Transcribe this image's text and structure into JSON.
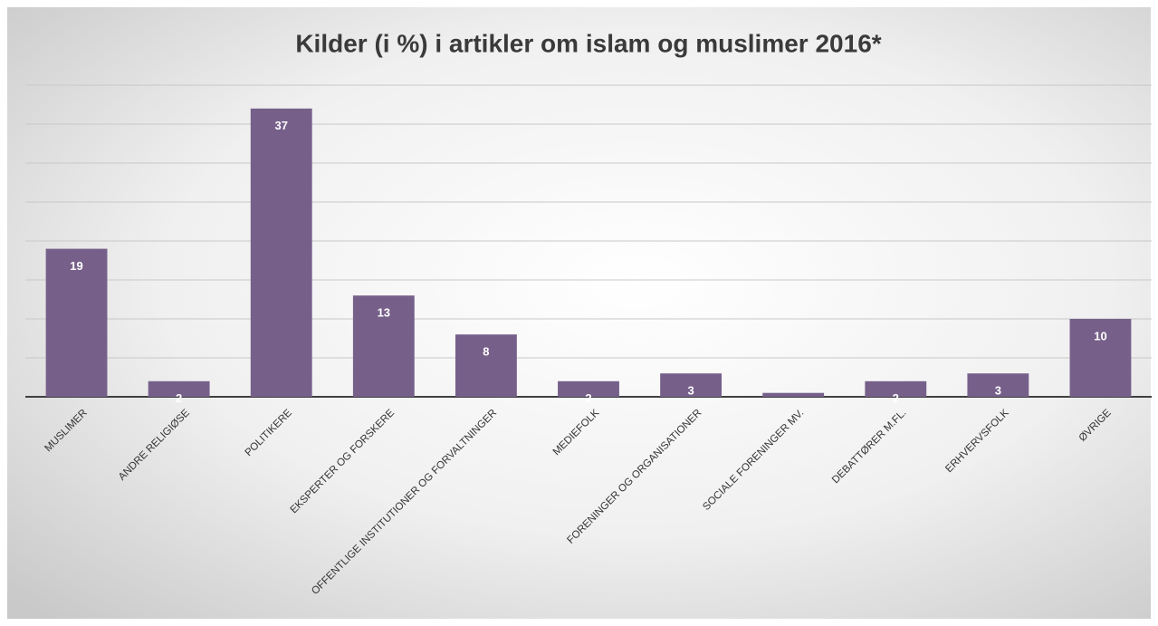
{
  "chart_data": {
    "type": "bar",
    "title": "Kilder (i %) i artikler om islam og muslimer 2016*",
    "categories": [
      "MUSLIMER",
      "ANDRE RELIGIØSE",
      "POLITIKERE",
      "EKSPERTER OG FORSKERE",
      "OFFENTLIGE INSTITUTIONER OG FORVALTNINGER",
      "MEDIEFOLK",
      "FORENINGER OG ORGANISATIONER",
      "SOCIALE FORENINGER MV.",
      "DEBATTØRER M.FL.",
      "ERHVERVSFOLK",
      "ØVRIGE"
    ],
    "values": [
      19,
      2,
      37,
      13,
      8,
      2,
      3,
      0.5,
      2,
      3,
      10
    ],
    "value_labels": [
      "19",
      "2",
      "37",
      "13",
      "8",
      "2",
      "3",
      null,
      "2",
      "3",
      "10"
    ],
    "color": "#76608a",
    "ylim": [
      0,
      40
    ],
    "yticks": [
      0,
      5,
      10,
      15,
      20,
      25,
      30,
      35,
      40
    ],
    "grid": true,
    "tick_labels": false
  }
}
